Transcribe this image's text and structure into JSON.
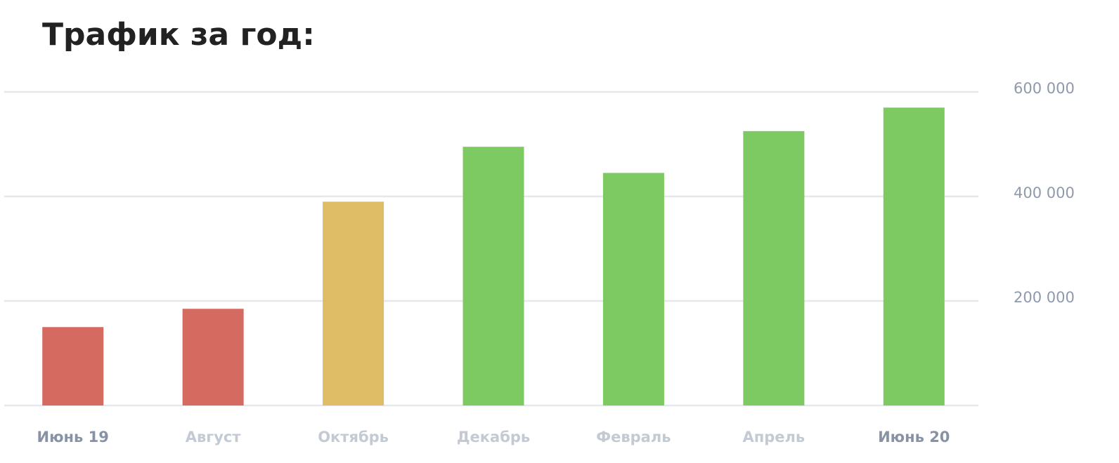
{
  "chart_data": {
    "type": "bar",
    "title": "Трафик за год:",
    "categories": [
      "Июнь 19",
      "Август",
      "Октябрь",
      "Декабрь",
      "Февраль",
      "Апрель",
      "Июнь 20"
    ],
    "values": [
      150000,
      185000,
      390000,
      495000,
      445000,
      525000,
      570000
    ],
    "colors": [
      "#d46a60",
      "#d46a60",
      "#dfbc66",
      "#7eca62",
      "#7eca62",
      "#7eca62",
      "#7eca62"
    ],
    "ylim": [
      0,
      600000
    ],
    "yticks": [
      {
        "value": 200000,
        "label": "200 000"
      },
      {
        "value": 400000,
        "label": "400 000"
      },
      {
        "value": 600000,
        "label": "600 000"
      }
    ],
    "grid": true
  }
}
